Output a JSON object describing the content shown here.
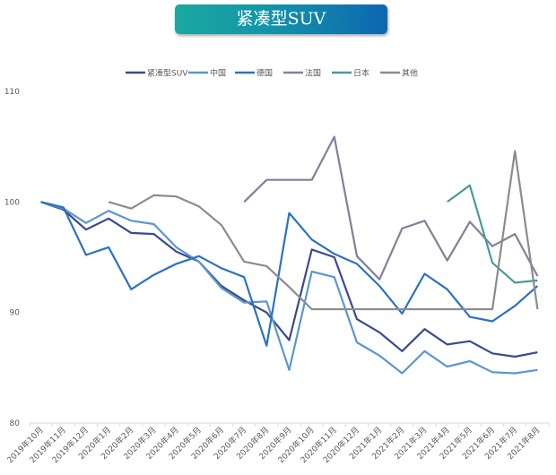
{
  "chart_data": {
    "type": "line",
    "title": "紧凑型SUV",
    "xlabel": "",
    "ylabel": "",
    "ylim": [
      80,
      110
    ],
    "yticks": [
      "80",
      "90",
      "100",
      "110"
    ],
    "grid": false,
    "legend_position": "top",
    "categories": [
      "2019年10月",
      "2019年11月",
      "2019年12月",
      "2020年1月",
      "2020年2月",
      "2020年3月",
      "2020年4月",
      "2020年5月",
      "2020年6月",
      "2020年7月",
      "2020年8月",
      "2020年9月",
      "2020年10月",
      "2020年11月",
      "2020年12月",
      "2021年1月",
      "2021年2月",
      "2021年3月",
      "2021年4月",
      "2021年5月",
      "2021年6月",
      "2021年7月",
      "2021年8月"
    ],
    "series": [
      {
        "name": "紧凑型SUV",
        "color": "#3b4a8f",
        "values": [
          100,
          99.3,
          97.5,
          98.5,
          97.2,
          97.1,
          95.5,
          94.6,
          92.4,
          91.1,
          90.0,
          87.5,
          95.7,
          95.0,
          89.4,
          88.2,
          86.5,
          88.5,
          87.1,
          87.4,
          86.3,
          86.0,
          86.4
        ]
      },
      {
        "name": "中国",
        "color": "#5a97cf",
        "values": [
          100,
          99.4,
          98.1,
          99.2,
          98.3,
          98.0,
          95.9,
          94.6,
          92.2,
          90.9,
          91.0,
          84.8,
          93.7,
          93.2,
          87.3,
          86.1,
          84.5,
          86.5,
          85.1,
          85.6,
          84.6,
          84.5,
          84.8
        ]
      },
      {
        "name": "德国",
        "color": "#2a72c2",
        "values": [
          100,
          99.5,
          95.2,
          95.9,
          92.1,
          93.4,
          94.4,
          95.1,
          94.0,
          93.2,
          87.0,
          99.0,
          96.6,
          95.3,
          94.4,
          92.4,
          89.9,
          93.5,
          92.1,
          89.6,
          89.2,
          90.6,
          92.4
        ]
      },
      {
        "name": "法国",
        "color": "#7e8299",
        "values": [
          null,
          null,
          null,
          null,
          null,
          null,
          null,
          null,
          null,
          100,
          102,
          102,
          102,
          105.9,
          95.1,
          93.0,
          97.6,
          98.3,
          94.7,
          98.2,
          96.0,
          97.1,
          93.3
        ]
      },
      {
        "name": "日本",
        "color": "#4a9a9a",
        "values": [
          null,
          null,
          null,
          null,
          null,
          null,
          null,
          null,
          null,
          null,
          null,
          null,
          null,
          null,
          null,
          null,
          null,
          null,
          100,
          101.5,
          94.5,
          92.7,
          92.9
        ]
      },
      {
        "name": "其他",
        "color": "#8c8c8c",
        "values": [
          null,
          null,
          null,
          100,
          99.4,
          100.6,
          100.5,
          99.6,
          97.9,
          94.6,
          94.2,
          92.3,
          90.3,
          90.3,
          90.3,
          90.3,
          90.3,
          90.3,
          90.3,
          90.3,
          90.3,
          104.6,
          90.3
        ]
      }
    ]
  }
}
